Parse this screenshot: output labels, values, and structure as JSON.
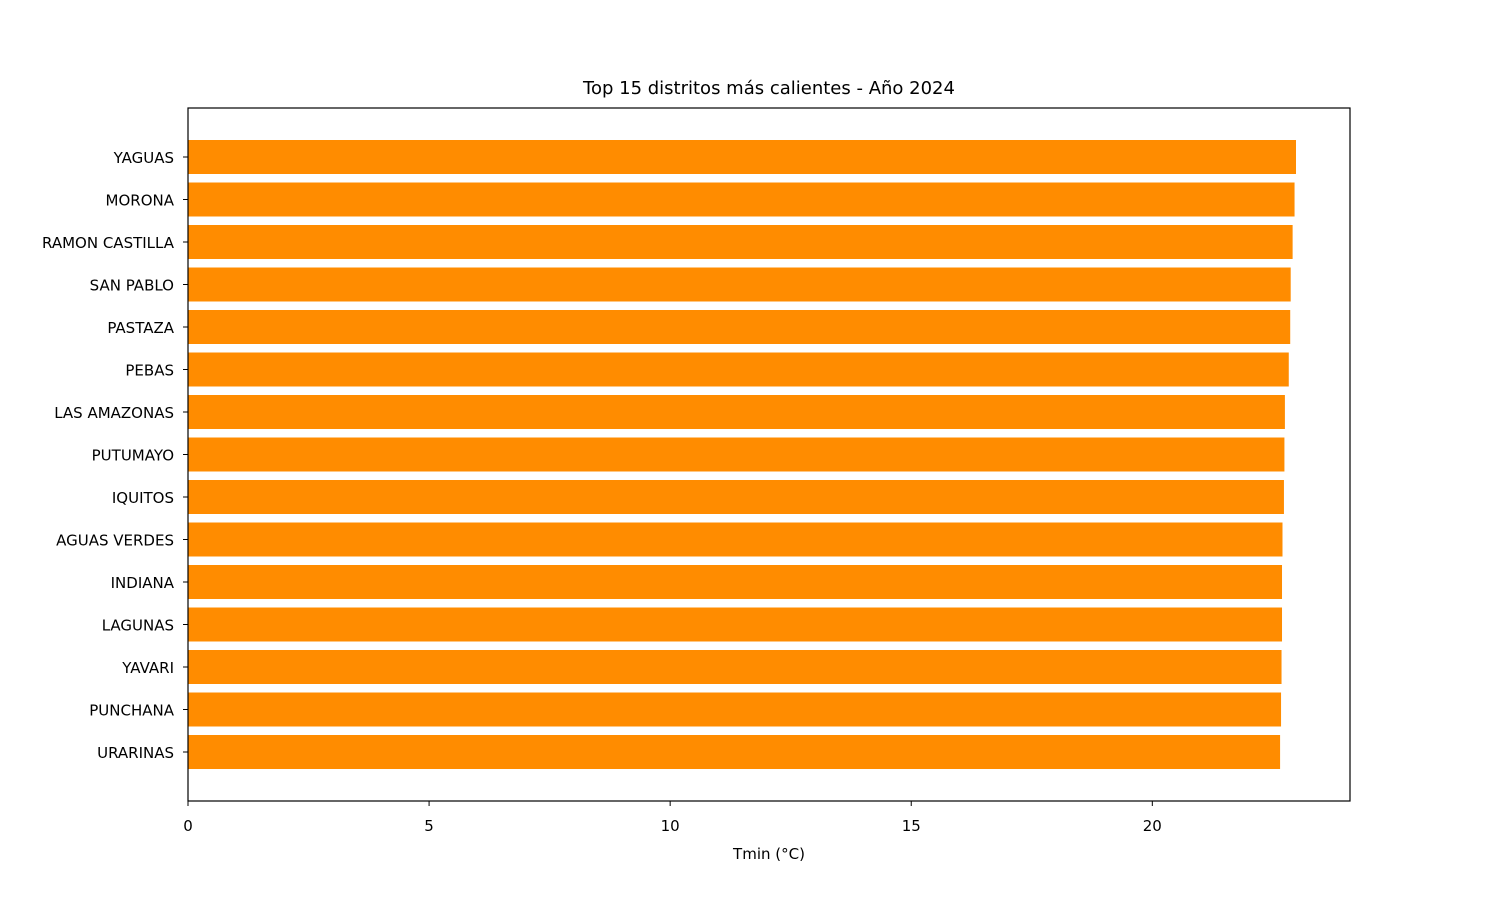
{
  "chart_data": {
    "type": "bar",
    "orientation": "horizontal",
    "title": "Top 15 distritos más calientes - Año 2024",
    "xlabel": "Tmin (°C)",
    "ylabel": "",
    "xlim": [
      0,
      24.1
    ],
    "xticks": [
      0,
      5,
      10,
      15,
      20
    ],
    "grid": false,
    "legend": "none",
    "bar_color": "#ff8c00",
    "categories": [
      "YAGUAS",
      "MORONA",
      "RAMON CASTILLA",
      "SAN PABLO",
      "PASTAZA",
      "PEBAS",
      "LAS AMAZONAS",
      "PUTUMAYO",
      "IQUITOS",
      "AGUAS VERDES",
      "INDIANA",
      "LAGUNAS",
      "YAVARI",
      "PUNCHANA",
      "URARINAS"
    ],
    "values": [
      22.98,
      22.95,
      22.91,
      22.87,
      22.86,
      22.83,
      22.75,
      22.74,
      22.73,
      22.7,
      22.69,
      22.69,
      22.68,
      22.67,
      22.65
    ]
  }
}
